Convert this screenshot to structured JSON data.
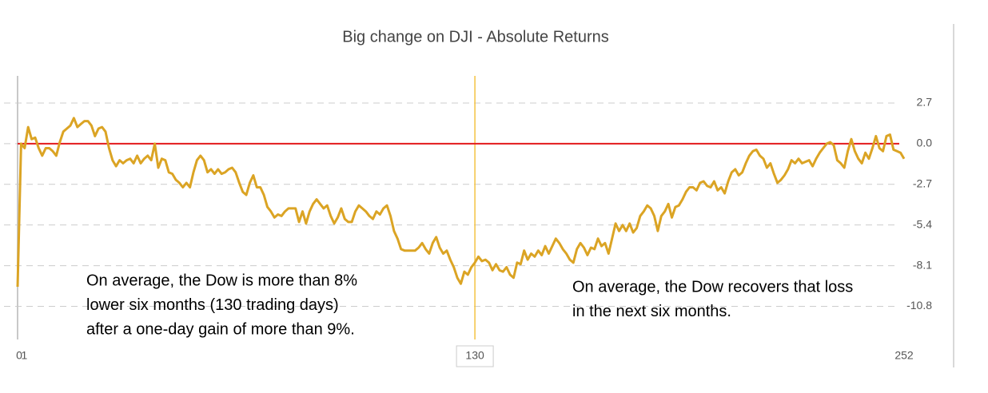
{
  "chart_data": {
    "type": "line",
    "title": "Big change on DJI - Absolute Returns",
    "x": [
      0,
      1,
      2,
      3,
      4,
      5,
      6,
      7,
      8,
      9,
      10,
      11,
      12,
      13,
      14,
      15,
      16,
      17,
      18,
      19,
      20,
      21,
      22,
      23,
      24,
      25,
      26,
      27,
      28,
      29,
      30,
      31,
      32,
      33,
      34,
      35,
      36,
      37,
      38,
      39,
      40,
      41,
      42,
      43,
      44,
      45,
      46,
      47,
      48,
      49,
      50,
      51,
      52,
      53,
      54,
      55,
      56,
      57,
      58,
      59,
      60,
      61,
      62,
      63,
      64,
      65,
      66,
      67,
      68,
      69,
      70,
      71,
      72,
      73,
      74,
      75,
      76,
      77,
      78,
      79,
      80,
      81,
      82,
      83,
      84,
      85,
      86,
      87,
      88,
      89,
      90,
      91,
      92,
      93,
      94,
      95,
      96,
      97,
      98,
      99,
      100,
      101,
      102,
      103,
      104,
      105,
      106,
      107,
      108,
      109,
      110,
      111,
      112,
      113,
      114,
      115,
      116,
      117,
      118,
      119,
      120,
      121,
      122,
      123,
      124,
      125,
      126,
      127,
      128,
      129,
      130,
      131,
      132,
      133,
      134,
      135,
      136,
      137,
      138,
      139,
      140,
      141,
      142,
      143,
      144,
      145,
      146,
      147,
      148,
      149,
      150,
      151,
      152,
      153,
      154,
      155,
      156,
      157,
      158,
      159,
      160,
      161,
      162,
      163,
      164,
      165,
      166,
      167,
      168,
      169,
      170,
      171,
      172,
      173,
      174,
      175,
      176,
      177,
      178,
      179,
      180,
      181,
      182,
      183,
      184,
      185,
      186,
      187,
      188,
      189,
      190,
      191,
      192,
      193,
      194,
      195,
      196,
      197,
      198,
      199,
      200,
      201,
      202,
      203,
      204,
      205,
      206,
      207,
      208,
      209,
      210,
      211,
      212,
      213,
      214,
      215,
      216,
      217,
      218,
      219,
      220,
      221,
      222,
      223,
      224,
      225,
      226,
      227,
      228,
      229,
      230,
      231,
      232,
      233,
      234,
      235,
      236,
      237,
      238,
      239,
      240,
      241,
      242,
      243,
      244,
      245,
      246,
      247,
      248,
      249,
      250,
      251,
      252
    ],
    "series": [
      {
        "name": "DJI",
        "color": "#dba424",
        "values": [
          -9.5,
          0,
          -0.3,
          1.1,
          0.3,
          0.4,
          -0.3,
          -0.8,
          -0.3,
          -0.3,
          -0.5,
          -0.8,
          0.1,
          0.8,
          1.0,
          1.2,
          1.7,
          1.1,
          1.3,
          1.5,
          1.5,
          1.2,
          0.5,
          1.0,
          1.1,
          0.8,
          -0.3,
          -1.1,
          -1.5,
          -1.1,
          -1.3,
          -1.1,
          -1.0,
          -1.3,
          -0.8,
          -1.3,
          -1.0,
          -0.8,
          -1.1,
          0,
          -1.6,
          -1.0,
          -1.1,
          -1.9,
          -2.0,
          -2.4,
          -2.6,
          -2.9,
          -2.6,
          -2.9,
          -1.9,
          -1.1,
          -0.8,
          -1.1,
          -1.9,
          -1.7,
          -2.0,
          -1.7,
          -2.0,
          -1.9,
          -1.7,
          -1.6,
          -1.9,
          -2.6,
          -3.2,
          -3.4,
          -2.6,
          -2.1,
          -2.9,
          -2.9,
          -3.4,
          -4.2,
          -4.5,
          -4.9,
          -4.7,
          -4.8,
          -4.5,
          -4.3,
          -4.3,
          -4.3,
          -5.2,
          -4.5,
          -5.3,
          -4.5,
          -4.0,
          -3.7,
          -4.0,
          -4.3,
          -4.1,
          -4.8,
          -5.3,
          -4.9,
          -4.3,
          -5.0,
          -5.2,
          -5.2,
          -4.5,
          -4.1,
          -4.3,
          -4.5,
          -4.8,
          -5.0,
          -4.5,
          -4.7,
          -4.3,
          -4.1,
          -4.8,
          -5.8,
          -6.3,
          -7.0,
          -7.1,
          -7.1,
          -7.1,
          -7.1,
          -6.9,
          -6.6,
          -7.0,
          -7.3,
          -6.6,
          -6.2,
          -6.9,
          -7.3,
          -7.1,
          -7.7,
          -8.2,
          -8.9,
          -9.3,
          -8.5,
          -8.7,
          -8.2,
          -7.9,
          -7.5,
          -7.8,
          -7.7,
          -7.9,
          -8.4,
          -8.0,
          -8.4,
          -8.5,
          -8.2,
          -8.7,
          -8.9,
          -7.9,
          -8.0,
          -7.1,
          -7.7,
          -7.3,
          -7.5,
          -7.1,
          -7.4,
          -6.8,
          -7.3,
          -6.8,
          -6.3,
          -6.6,
          -7.0,
          -7.3,
          -7.7,
          -7.9,
          -7.0,
          -6.6,
          -6.9,
          -7.4,
          -6.9,
          -7.0,
          -6.3,
          -6.8,
          -6.6,
          -7.3,
          -6.3,
          -5.3,
          -5.8,
          -5.4,
          -5.8,
          -5.3,
          -5.9,
          -5.6,
          -4.8,
          -4.5,
          -4.1,
          -4.3,
          -4.8,
          -5.8,
          -4.8,
          -4.5,
          -4.0,
          -4.9,
          -4.2,
          -4.1,
          -3.7,
          -3.2,
          -2.9,
          -2.9,
          -3.1,
          -2.6,
          -2.5,
          -2.8,
          -2.9,
          -2.5,
          -3.1,
          -2.9,
          -3.3,
          -2.5,
          -1.9,
          -1.7,
          -2.1,
          -1.9,
          -1.3,
          -0.8,
          -0.5,
          -0.4,
          -0.8,
          -1.0,
          -1.6,
          -1.3,
          -2.0,
          -2.6,
          -2.4,
          -2.1,
          -1.7,
          -1.1,
          -1.3,
          -1.0,
          -1.3,
          -1.2,
          -1.1,
          -1.5,
          -1.0,
          -0.6,
          -0.3,
          0,
          0.1,
          -0.1,
          -1.1,
          -1.3,
          -1.6,
          -0.5,
          0.3,
          -0.5,
          -1.0,
          -1.3,
          -0.6,
          -1.0,
          -0.3,
          0.5,
          -0.3,
          -0.5,
          0.5,
          0.6,
          -0.4,
          -0.5,
          -0.6,
          -1.0
        ]
      }
    ],
    "xlim": [
      0,
      252
    ],
    "xticks": [
      0,
      1,
      130,
      252
    ],
    "ylim": [
      -13,
      4.5
    ],
    "yticks": [
      2.7,
      {
        "value": 0,
        "label": "0.0"
      },
      -2.7,
      -5.4,
      -8.1,
      -10.8
    ],
    "grid": true,
    "reference_line_y": {
      "value": 0,
      "color": "#e31a1c"
    },
    "reference_line_x": {
      "value": 130,
      "color": "#f5c242"
    },
    "annotations": [
      {
        "lines": [
          "On average, the Dow is more than 8%",
          "lower six months (130 trading days)",
          "after a one-day gain of more than 9%."
        ]
      },
      {
        "lines": [
          "On average, the Dow recovers that loss",
          "in the next six months."
        ]
      }
    ]
  }
}
